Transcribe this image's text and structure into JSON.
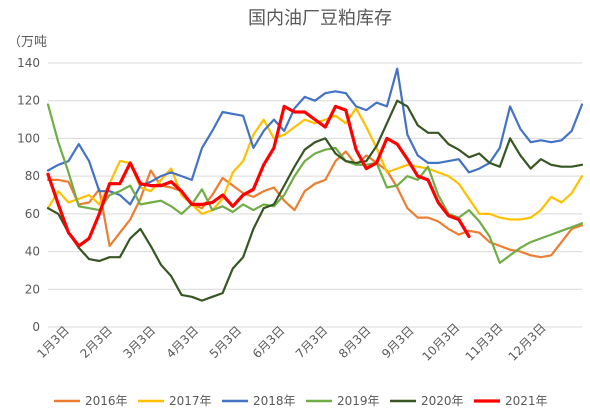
{
  "chart_data": {
    "type": "line",
    "title": "国内油厂豆粕库存",
    "unit": "（万吨",
    "ylim": [
      0,
      140
    ],
    "yticks": [
      0,
      20,
      40,
      60,
      80,
      100,
      120,
      140
    ],
    "xtick_labels": [
      "1月3日",
      "2月3日",
      "3月3日",
      "4月3日",
      "5月3日",
      "6月3日",
      "7月3日",
      "8月3日",
      "9月3日",
      "10月3日",
      "11月3日",
      "12月3日"
    ],
    "xlim": [
      1,
      53
    ],
    "grid": true,
    "legend_position": "bottom",
    "series": [
      {
        "name": "2016年",
        "color": "#ed7d31",
        "x": [
          1,
          2,
          3,
          4,
          5,
          6,
          7,
          8,
          9,
          10,
          11,
          12,
          13,
          14,
          15,
          16,
          17,
          18,
          19,
          20,
          21,
          22,
          23,
          24,
          25,
          26,
          27,
          28,
          29,
          30,
          31,
          32,
          33,
          34,
          35,
          36,
          37,
          38,
          39,
          40,
          41,
          42,
          43,
          44,
          45,
          46,
          47,
          48,
          49,
          50,
          51,
          52,
          53
        ],
        "values": [
          78,
          78,
          77,
          65,
          66,
          73,
          43,
          50,
          57,
          68,
          83,
          75,
          74,
          72,
          65,
          63,
          70,
          79,
          75,
          71,
          69,
          72,
          74,
          67,
          62,
          72,
          76,
          78,
          88,
          93,
          86,
          91,
          87,
          83,
          74,
          63,
          58,
          58,
          56,
          52,
          49,
          51,
          50,
          45,
          43,
          41,
          40,
          38,
          37,
          38,
          45,
          52,
          54
        ]
      },
      {
        "name": "2017年",
        "color": "#ffc000",
        "x": [
          1,
          2,
          3,
          4,
          5,
          6,
          7,
          8,
          9,
          10,
          11,
          12,
          13,
          14,
          15,
          16,
          17,
          18,
          19,
          20,
          21,
          22,
          23,
          24,
          25,
          26,
          27,
          28,
          29,
          30,
          31,
          32,
          33,
          34,
          35,
          36,
          37,
          38,
          39,
          40,
          41,
          42,
          43,
          44,
          45,
          46,
          47,
          48,
          49,
          50,
          51,
          52,
          53
        ],
        "values": [
          63,
          72,
          66,
          68,
          70,
          65,
          76,
          88,
          87,
          74,
          72,
          78,
          84,
          70,
          65,
          60,
          62,
          68,
          82,
          88,
          102,
          110,
          100,
          102,
          106,
          110,
          108,
          110,
          112,
          108,
          116,
          106,
          95,
          82,
          84,
          86,
          85,
          84,
          82,
          80,
          76,
          68,
          60,
          60,
          58,
          57,
          57,
          58,
          62,
          69,
          66,
          71,
          80
        ]
      },
      {
        "name": "2018年",
        "color": "#4472c4",
        "x": [
          1,
          2,
          3,
          4,
          5,
          6,
          7,
          8,
          9,
          10,
          11,
          12,
          13,
          14,
          15,
          16,
          17,
          18,
          19,
          20,
          21,
          22,
          23,
          24,
          25,
          26,
          27,
          28,
          29,
          30,
          31,
          32,
          33,
          34,
          35,
          36,
          37,
          38,
          39,
          40,
          41,
          42,
          43,
          44,
          45,
          46,
          47,
          48,
          49,
          50,
          51,
          52,
          53
        ],
        "values": [
          83,
          86,
          88,
          97,
          88,
          72,
          72,
          70,
          65,
          75,
          77,
          80,
          82,
          80,
          78,
          95,
          104,
          114,
          113,
          112,
          95,
          104,
          110,
          104,
          116,
          122,
          120,
          124,
          125,
          124,
          117,
          115,
          119,
          117,
          137,
          102,
          91,
          87,
          87,
          88,
          89,
          82,
          84,
          87,
          95,
          117,
          105,
          98,
          99,
          98,
          99,
          104,
          118
        ]
      },
      {
        "name": "2019年",
        "color": "#70ad47",
        "x": [
          1,
          2,
          3,
          4,
          5,
          6,
          7,
          8,
          9,
          10,
          11,
          12,
          13,
          14,
          15,
          16,
          17,
          18,
          19,
          20,
          21,
          22,
          23,
          24,
          25,
          26,
          27,
          28,
          29,
          30,
          31,
          32,
          33,
          34,
          35,
          36,
          37,
          38,
          39,
          40,
          41,
          42,
          43,
          44,
          45,
          46,
          47,
          48,
          49,
          50,
          51,
          52,
          53
        ],
        "values": [
          118,
          98,
          82,
          64,
          63,
          62,
          70,
          72,
          75,
          65,
          66,
          67,
          64,
          60,
          65,
          73,
          62,
          64,
          61,
          65,
          62,
          65,
          64,
          70,
          80,
          88,
          92,
          94,
          95,
          88,
          86,
          86,
          87,
          74,
          75,
          80,
          78,
          85,
          70,
          60,
          58,
          62,
          56,
          48,
          34,
          38,
          42,
          45,
          47,
          49,
          51,
          53,
          55
        ]
      },
      {
        "name": "2020年",
        "color": "#375623",
        "x": [
          1,
          2,
          3,
          4,
          5,
          6,
          7,
          8,
          9,
          10,
          11,
          12,
          13,
          14,
          15,
          16,
          17,
          18,
          19,
          20,
          21,
          22,
          23,
          24,
          25,
          26,
          27,
          28,
          29,
          30,
          31,
          32,
          33,
          34,
          35,
          36,
          37,
          38,
          39,
          40,
          41,
          42,
          43,
          44,
          45,
          46,
          47,
          48,
          49,
          50,
          51,
          52,
          53
        ],
        "values": [
          63,
          60,
          50,
          42,
          36,
          35,
          37,
          37,
          47,
          52,
          43,
          33,
          27,
          17,
          16,
          14,
          16,
          18,
          31,
          37,
          52,
          63,
          65,
          75,
          85,
          94,
          98,
          100,
          92,
          88,
          87,
          88,
          96,
          108,
          120,
          117,
          107,
          103,
          103,
          97,
          94,
          90,
          92,
          87,
          85,
          100,
          91,
          84,
          89,
          86,
          85,
          85,
          86
        ]
      },
      {
        "name": "2021年",
        "color": "#ff0000",
        "x": [
          1,
          2,
          3,
          4,
          5,
          6,
          7,
          8,
          9,
          10,
          11,
          12,
          13,
          14,
          15,
          16,
          17,
          18,
          19,
          20,
          21,
          22,
          23,
          24,
          25,
          26,
          27,
          28,
          29,
          30,
          31,
          32,
          33,
          34,
          35,
          36,
          37,
          38,
          39,
          40,
          41,
          42
        ],
        "values": [
          81,
          65,
          50,
          43,
          47,
          60,
          76,
          76,
          87,
          76,
          75,
          75,
          77,
          72,
          65,
          65,
          66,
          70,
          64,
          70,
          73,
          86,
          95,
          117,
          114,
          114,
          110,
          106,
          117,
          115,
          94,
          84,
          87,
          100,
          97,
          89,
          80,
          78,
          66,
          59,
          57,
          48
        ]
      }
    ]
  }
}
